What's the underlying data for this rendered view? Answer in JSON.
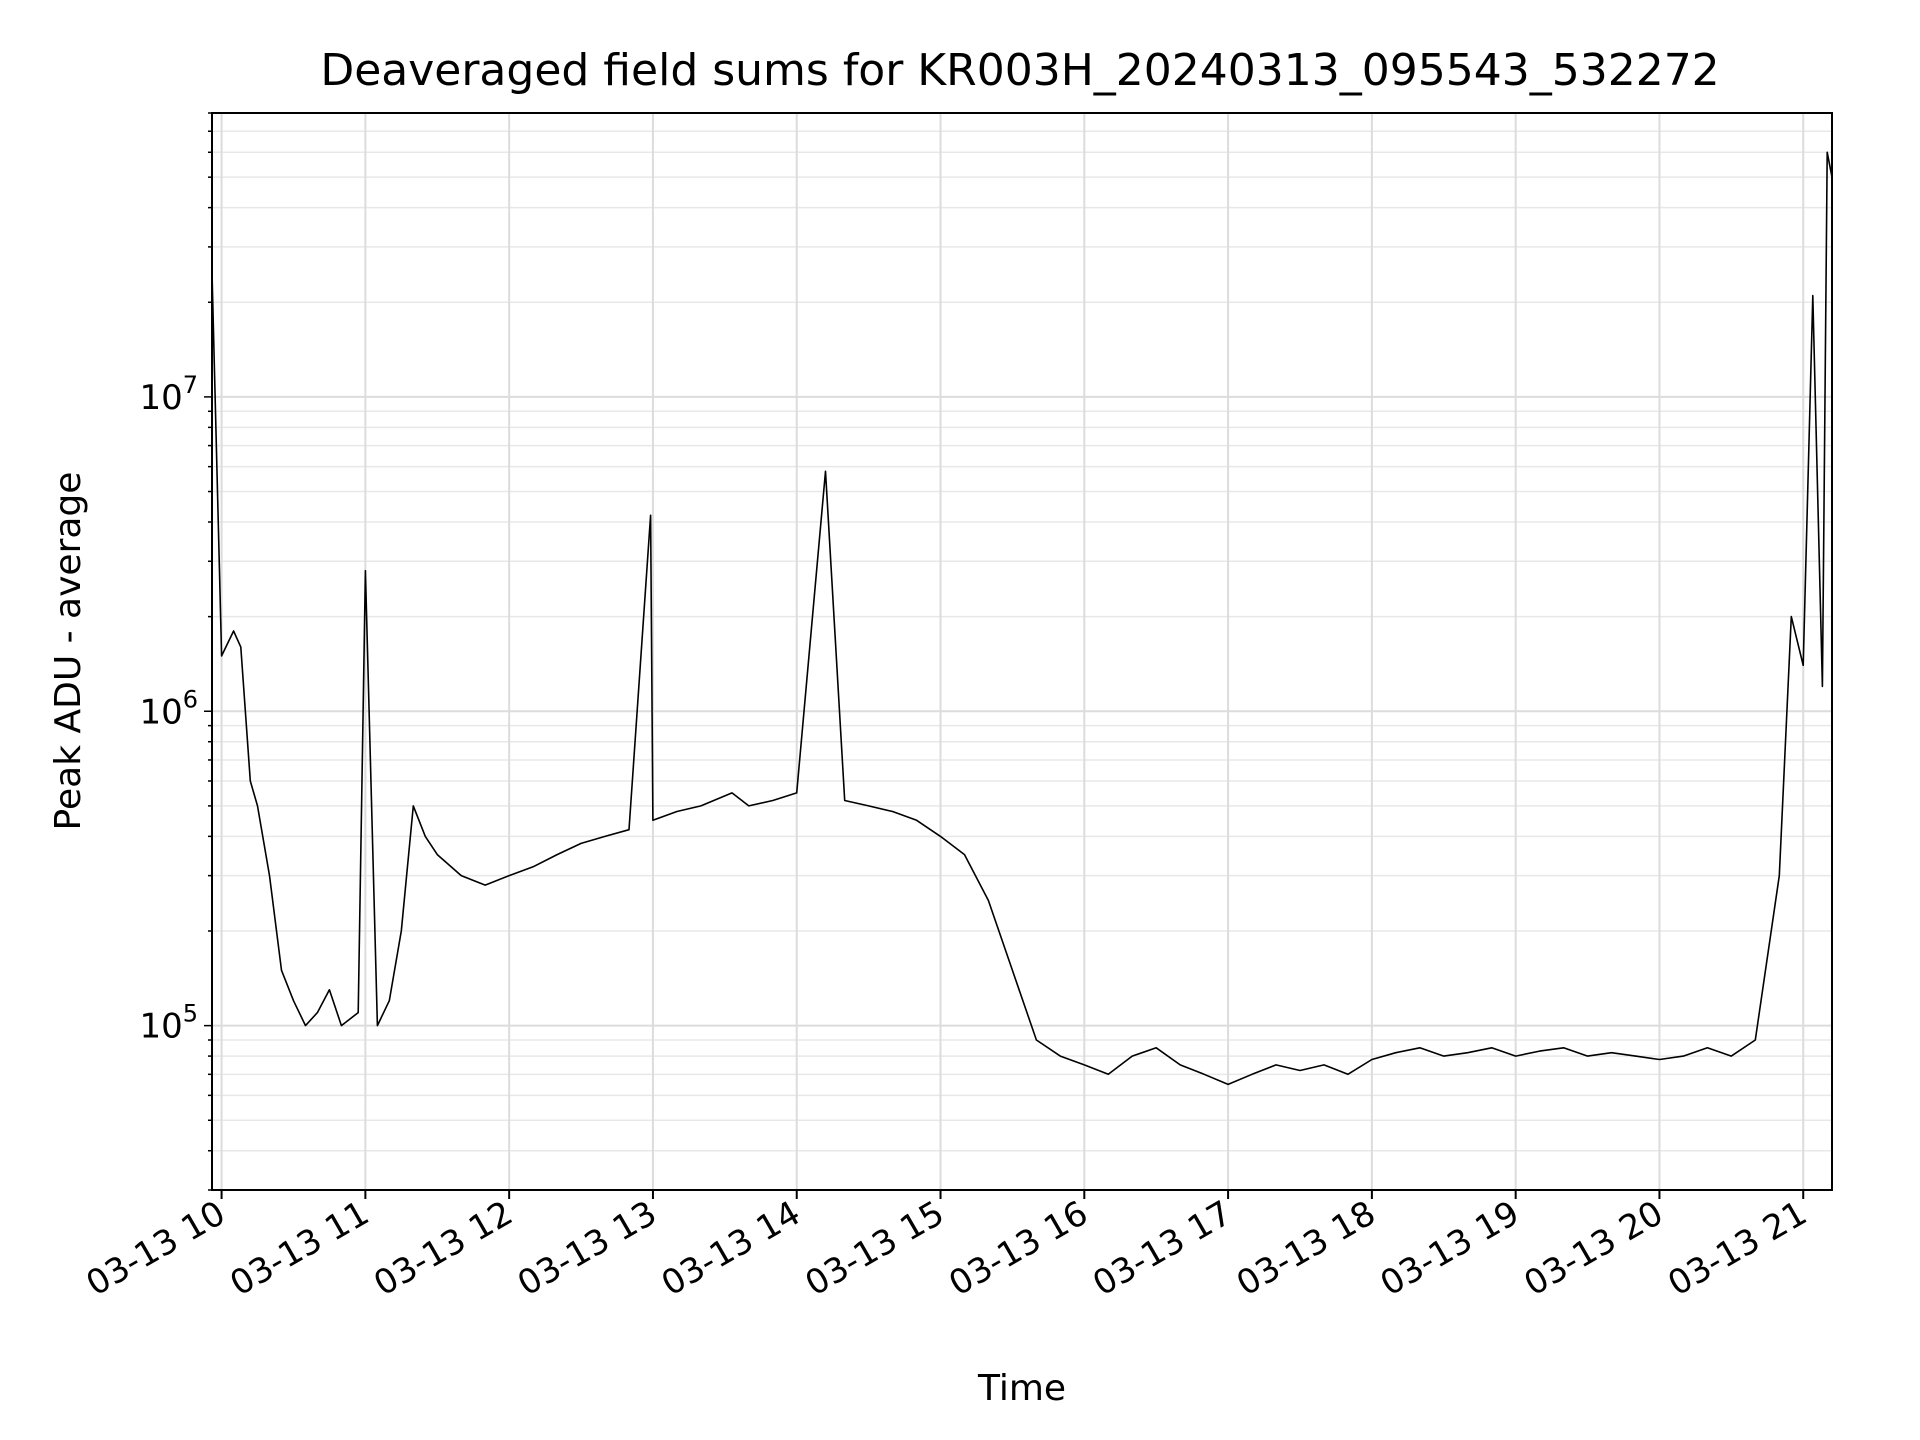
{
  "chart_data": {
    "type": "line",
    "title": "Deaveraged field sums for KR003H_20240313_095543_532272",
    "xlabel": "Time",
    "ylabel": "Peak ADU - average",
    "yscale": "log",
    "ylim": [
      30000,
      80000000
    ],
    "xlim": [
      "2024-03-13 09:56",
      "2024-03-13 21:12"
    ],
    "grid": true,
    "color": "#000000",
    "x_ticks": [
      {
        "value": "2024-03-13 10:00",
        "label": "03-13 10"
      },
      {
        "value": "2024-03-13 11:00",
        "label": "03-13 11"
      },
      {
        "value": "2024-03-13 12:00",
        "label": "03-13 12"
      },
      {
        "value": "2024-03-13 13:00",
        "label": "03-13 13"
      },
      {
        "value": "2024-03-13 14:00",
        "label": "03-13 14"
      },
      {
        "value": "2024-03-13 15:00",
        "label": "03-13 15"
      },
      {
        "value": "2024-03-13 16:00",
        "label": "03-13 16"
      },
      {
        "value": "2024-03-13 17:00",
        "label": "03-13 17"
      },
      {
        "value": "2024-03-13 18:00",
        "label": "03-13 18"
      },
      {
        "value": "2024-03-13 19:00",
        "label": "03-13 19"
      },
      {
        "value": "2024-03-13 20:00",
        "label": "03-13 20"
      },
      {
        "value": "2024-03-13 21:00",
        "label": "03-13 21"
      }
    ],
    "y_ticks": [
      {
        "value": 100000,
        "base": "10",
        "exp": "5"
      },
      {
        "value": 1000000,
        "base": "10",
        "exp": "6"
      },
      {
        "value": 10000000,
        "base": "10",
        "exp": "7"
      }
    ],
    "series": [
      {
        "x": [
          "2024-03-13 09:56",
          "2024-03-13 10:00",
          "2024-03-13 10:05",
          "2024-03-13 10:08",
          "2024-03-13 10:12",
          "2024-03-13 10:15",
          "2024-03-13 10:20",
          "2024-03-13 10:25",
          "2024-03-13 10:30",
          "2024-03-13 10:35",
          "2024-03-13 10:40",
          "2024-03-13 10:45",
          "2024-03-13 10:50",
          "2024-03-13 10:57",
          "2024-03-13 11:00",
          "2024-03-13 11:05",
          "2024-03-13 11:10",
          "2024-03-13 11:15",
          "2024-03-13 11:20",
          "2024-03-13 11:25",
          "2024-03-13 11:30",
          "2024-03-13 11:40",
          "2024-03-13 11:50",
          "2024-03-13 12:00",
          "2024-03-13 12:10",
          "2024-03-13 12:20",
          "2024-03-13 12:30",
          "2024-03-13 12:40",
          "2024-03-13 12:50",
          "2024-03-13 12:59",
          "2024-03-13 13:00",
          "2024-03-13 13:10",
          "2024-03-13 13:20",
          "2024-03-13 13:33",
          "2024-03-13 13:40",
          "2024-03-13 13:50",
          "2024-03-13 14:00",
          "2024-03-13 14:12",
          "2024-03-13 14:20",
          "2024-03-13 14:30",
          "2024-03-13 14:40",
          "2024-03-13 14:50",
          "2024-03-13 15:00",
          "2024-03-13 15:10",
          "2024-03-13 15:20",
          "2024-03-13 15:30",
          "2024-03-13 15:40",
          "2024-03-13 15:50",
          "2024-03-13 16:00",
          "2024-03-13 16:10",
          "2024-03-13 16:20",
          "2024-03-13 16:30",
          "2024-03-13 16:40",
          "2024-03-13 16:50",
          "2024-03-13 17:00",
          "2024-03-13 17:10",
          "2024-03-13 17:20",
          "2024-03-13 17:30",
          "2024-03-13 17:40",
          "2024-03-13 17:50",
          "2024-03-13 18:00",
          "2024-03-13 18:10",
          "2024-03-13 18:20",
          "2024-03-13 18:30",
          "2024-03-13 18:40",
          "2024-03-13 18:50",
          "2024-03-13 19:00",
          "2024-03-13 19:10",
          "2024-03-13 19:20",
          "2024-03-13 19:30",
          "2024-03-13 19:40",
          "2024-03-13 19:50",
          "2024-03-13 20:00",
          "2024-03-13 20:10",
          "2024-03-13 20:20",
          "2024-03-13 20:30",
          "2024-03-13 20:40",
          "2024-03-13 20:50",
          "2024-03-13 20:55",
          "2024-03-13 21:00",
          "2024-03-13 21:04",
          "2024-03-13 21:08",
          "2024-03-13 21:10",
          "2024-03-13 21:12"
        ],
        "y": [
          25000000,
          1500000,
          1800000,
          1600000,
          600000,
          500000,
          300000,
          150000,
          120000,
          100000,
          110000,
          130000,
          100000,
          110000,
          2800000,
          100000,
          120000,
          200000,
          500000,
          400000,
          350000,
          300000,
          280000,
          300000,
          320000,
          350000,
          380000,
          400000,
          420000,
          4200000,
          450000,
          480000,
          500000,
          550000,
          500000,
          520000,
          550000,
          5800000,
          520000,
          500000,
          480000,
          450000,
          400000,
          350000,
          250000,
          150000,
          90000,
          80000,
          75000,
          70000,
          80000,
          85000,
          75000,
          70000,
          65000,
          70000,
          75000,
          72000,
          75000,
          70000,
          78000,
          82000,
          85000,
          80000,
          82000,
          85000,
          80000,
          83000,
          85000,
          80000,
          82000,
          80000,
          78000,
          80000,
          85000,
          80000,
          90000,
          300000,
          2000000,
          1400000,
          21000000,
          1200000,
          60000000,
          50000000
        ]
      }
    ]
  }
}
